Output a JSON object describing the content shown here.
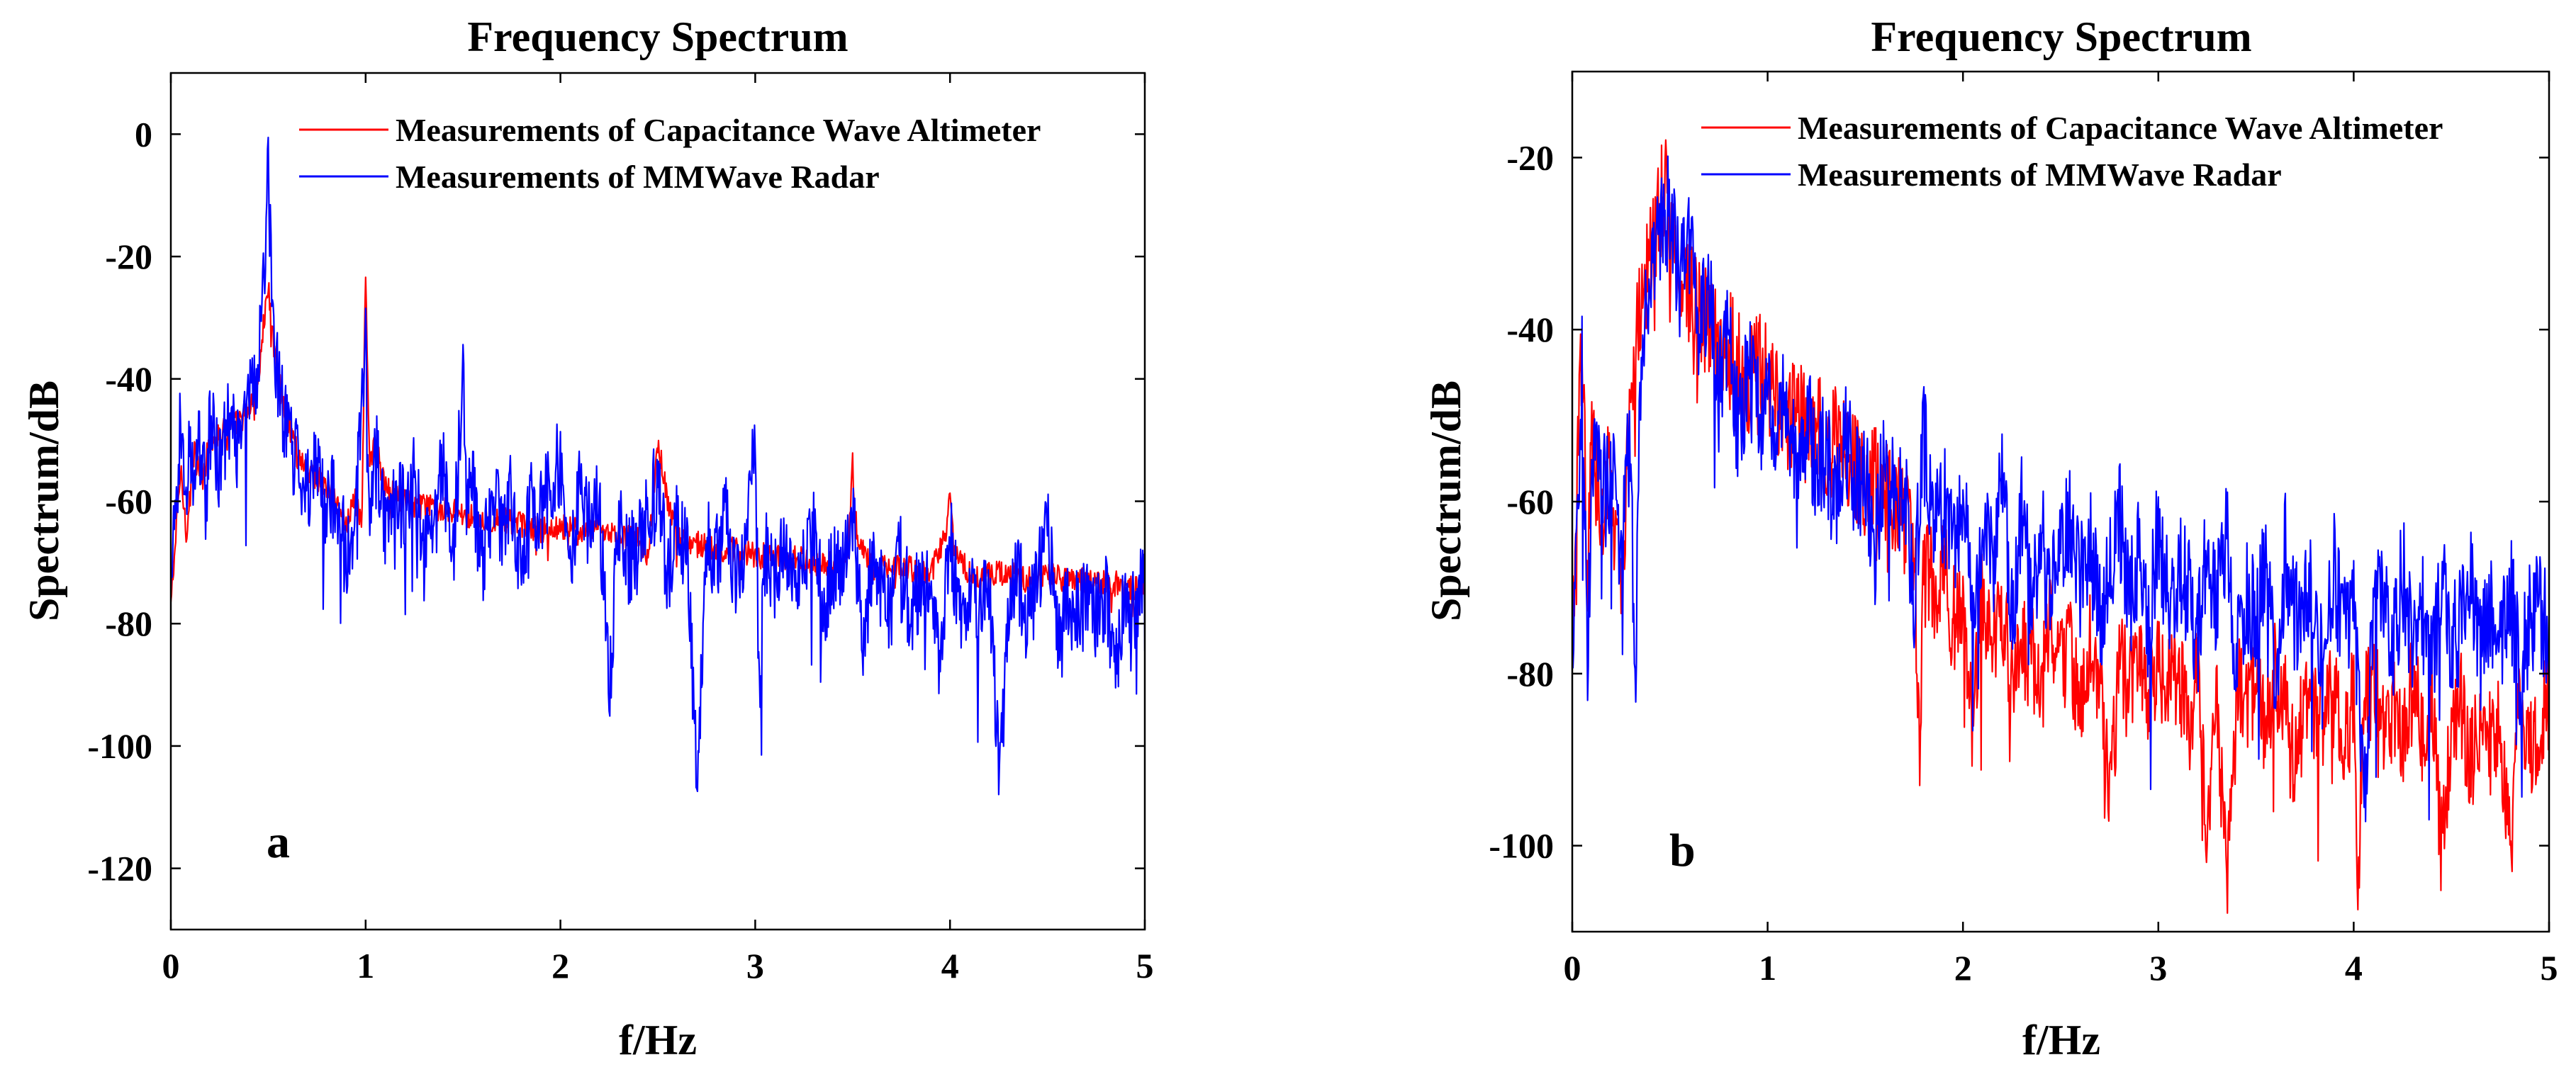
{
  "colors": {
    "capacitance": "#ff0000",
    "mmwave": "#0000ff",
    "axes": "#000000",
    "background": "#ffffff"
  },
  "chart_data": [
    {
      "type": "line",
      "panel_label": "a",
      "title": "Frequency Spectrum",
      "xlabel": "f/Hz",
      "ylabel": "Spectrum/dB",
      "xlim": [
        0,
        5
      ],
      "ylim": [
        -130,
        10
      ],
      "xticks": [
        0,
        1,
        2,
        3,
        4,
        5
      ],
      "xtick_labels": [
        "0",
        "1",
        "2",
        "3",
        "4",
        "5"
      ],
      "yticks": [
        0,
        -20,
        -40,
        -60,
        -80,
        -100,
        -120
      ],
      "ytick_labels": [
        "0",
        "-20",
        "-40",
        "-60",
        "-80",
        "-100",
        "-120"
      ],
      "grid": false,
      "legend_position": "top-right",
      "series": [
        {
          "name": "Measurements of Capacitance Wave Altimeter",
          "color": "#ff0000",
          "x": [
            0,
            0.05,
            0.08,
            0.12,
            0.16,
            0.2,
            0.25,
            0.3,
            0.35,
            0.4,
            0.45,
            0.48,
            0.5,
            0.52,
            0.55,
            0.6,
            0.65,
            0.7,
            0.75,
            0.8,
            0.85,
            0.9,
            0.95,
            0.98,
            1.0,
            1.02,
            1.05,
            1.1,
            1.2,
            1.3,
            1.4,
            1.5,
            1.6,
            1.7,
            1.8,
            1.9,
            2.0,
            2.1,
            2.2,
            2.3,
            2.4,
            2.45,
            2.5,
            2.55,
            2.6,
            2.7,
            2.8,
            2.9,
            3.0,
            3.1,
            3.2,
            3.3,
            3.4,
            3.48,
            3.5,
            3.52,
            3.6,
            3.7,
            3.8,
            3.9,
            3.98,
            4.0,
            4.02,
            4.1,
            4.2,
            4.3,
            4.4,
            4.5,
            4.6,
            4.7,
            4.8,
            4.9,
            5.0
          ],
          "y": [
            -77,
            -55,
            -65,
            -52,
            -57,
            -50,
            -49,
            -48,
            -47,
            -45,
            -40,
            -30,
            -25,
            -32,
            -40,
            -47,
            -52,
            -55,
            -56,
            -58,
            -60,
            -64,
            -58,
            -65,
            -22,
            -55,
            -50,
            -58,
            -60,
            -61,
            -61,
            -62,
            -63,
            -63,
            -64,
            -65,
            -64,
            -65,
            -65,
            -66,
            -66,
            -70,
            -50,
            -60,
            -66,
            -67,
            -68,
            -68,
            -69,
            -69,
            -69,
            -70,
            -70,
            -68,
            -54,
            -65,
            -71,
            -71,
            -71,
            -72,
            -65,
            -57,
            -68,
            -72,
            -72,
            -72,
            -73,
            -72,
            -73,
            -73,
            -73,
            -74,
            -74
          ]
        },
        {
          "name": "Measurements of MMWave Radar",
          "color": "#0000ff",
          "x": [
            0,
            0.05,
            0.08,
            0.1,
            0.12,
            0.15,
            0.18,
            0.2,
            0.25,
            0.3,
            0.35,
            0.4,
            0.45,
            0.48,
            0.5,
            0.52,
            0.55,
            0.6,
            0.65,
            0.7,
            0.75,
            0.8,
            0.85,
            0.9,
            0.95,
            1.0,
            1.02,
            1.05,
            1.1,
            1.15,
            1.2,
            1.25,
            1.3,
            1.35,
            1.4,
            1.45,
            1.5,
            1.52,
            1.55,
            1.6,
            1.65,
            1.7,
            1.75,
            1.8,
            1.85,
            1.9,
            1.95,
            2.0,
            2.05,
            2.1,
            2.15,
            2.2,
            2.25,
            2.3,
            2.35,
            2.4,
            2.45,
            2.5,
            2.55,
            2.6,
            2.65,
            2.7,
            2.75,
            2.8,
            2.85,
            2.9,
            2.95,
            3.0,
            3.02,
            3.05,
            3.1,
            3.15,
            3.2,
            3.25,
            3.3,
            3.35,
            3.4,
            3.45,
            3.5,
            3.55,
            3.6,
            3.65,
            3.7,
            3.75,
            3.8,
            3.85,
            3.9,
            3.95,
            4.0,
            4.05,
            4.1,
            4.15,
            4.2,
            4.25,
            4.3,
            4.35,
            4.4,
            4.45,
            4.5,
            4.55,
            4.6,
            4.65,
            4.7,
            4.75,
            4.8,
            4.85,
            4.9,
            4.95,
            5.0
          ],
          "y": [
            -77,
            -46,
            -62,
            -48,
            -58,
            -50,
            -60,
            -47,
            -55,
            -47,
            -52,
            -44,
            -38,
            -22,
            -4,
            -30,
            -40,
            -50,
            -54,
            -57,
            -55,
            -62,
            -58,
            -70,
            -60,
            -35,
            -62,
            -50,
            -65,
            -58,
            -62,
            -54,
            -70,
            -60,
            -56,
            -68,
            -40,
            -62,
            -58,
            -70,
            -60,
            -64,
            -58,
            -72,
            -60,
            -62,
            -56,
            -54,
            -70,
            -58,
            -64,
            -60,
            -92,
            -62,
            -70,
            -66,
            -60,
            -58,
            -72,
            -64,
            -68,
            -106,
            -66,
            -70,
            -62,
            -72,
            -66,
            -49,
            -90,
            -68,
            -72,
            -66,
            -74,
            -70,
            -64,
            -78,
            -70,
            -72,
            -62,
            -84,
            -70,
            -74,
            -78,
            -68,
            -80,
            -72,
            -76,
            -86,
            -66,
            -78,
            -74,
            -80,
            -72,
            -104,
            -76,
            -72,
            -80,
            -74,
            -63,
            -82,
            -76,
            -78,
            -74,
            -80,
            -76,
            -88,
            -74,
            -78,
            -72
          ]
        }
      ]
    },
    {
      "type": "line",
      "panel_label": "b",
      "title": "Frequency Spectrum",
      "xlabel": "f/Hz",
      "ylabel": "Spectrum/dB",
      "xlim": [
        0,
        5
      ],
      "ylim": [
        -110,
        -10
      ],
      "xticks": [
        0,
        1,
        2,
        3,
        4,
        5
      ],
      "xtick_labels": [
        "0",
        "1",
        "2",
        "3",
        "4",
        "5"
      ],
      "yticks": [
        -20,
        -40,
        -60,
        -80,
        -100
      ],
      "ytick_labels": [
        "-20",
        "-40",
        "-60",
        "-80",
        "-100"
      ],
      "grid": false,
      "legend_position": "top-right",
      "series": [
        {
          "name": "Measurements of Capacitance Wave Altimeter",
          "color": "#ff0000",
          "x": [
            0,
            0.05,
            0.08,
            0.1,
            0.15,
            0.2,
            0.25,
            0.3,
            0.35,
            0.4,
            0.45,
            0.48,
            0.5,
            0.55,
            0.6,
            0.65,
            0.7,
            0.75,
            0.8,
            0.85,
            0.9,
            0.95,
            1.0,
            1.05,
            1.1,
            1.15,
            1.2,
            1.25,
            1.3,
            1.35,
            1.4,
            1.45,
            1.5,
            1.55,
            1.6,
            1.65,
            1.7,
            1.75,
            1.78,
            1.8,
            1.85,
            1.9,
            1.95,
            2.0,
            2.05,
            2.1,
            2.15,
            2.2,
            2.25,
            2.3,
            2.35,
            2.4,
            2.45,
            2.5,
            2.55,
            2.6,
            2.65,
            2.7,
            2.75,
            2.8,
            2.85,
            2.9,
            2.95,
            3.0,
            3.05,
            3.1,
            3.15,
            3.2,
            3.25,
            3.3,
            3.35,
            3.4,
            3.45,
            3.5,
            3.55,
            3.6,
            3.65,
            3.7,
            3.75,
            3.8,
            3.85,
            3.9,
            3.95,
            4.0,
            4.02,
            4.05,
            4.1,
            4.15,
            4.2,
            4.25,
            4.3,
            4.35,
            4.4,
            4.45,
            4.5,
            4.55,
            4.6,
            4.65,
            4.7,
            4.75,
            4.8,
            4.85,
            4.9,
            4.95,
            5.0
          ],
          "y": [
            -77,
            -41,
            -70,
            -52,
            -62,
            -55,
            -72,
            -48,
            -36,
            -32,
            -26,
            -22,
            -28,
            -34,
            -36,
            -38,
            -40,
            -42,
            -41,
            -44,
            -46,
            -44,
            -46,
            -48,
            -50,
            -49,
            -52,
            -50,
            -54,
            -53,
            -55,
            -56,
            -58,
            -57,
            -60,
            -59,
            -62,
            -64,
            -91,
            -66,
            -70,
            -68,
            -74,
            -72,
            -86,
            -70,
            -76,
            -74,
            -80,
            -76,
            -78,
            -82,
            -74,
            -80,
            -78,
            -84,
            -76,
            -80,
            -96,
            -78,
            -82,
            -80,
            -84,
            -78,
            -82,
            -80,
            -86,
            -80,
            -98,
            -84,
            -103,
            -80,
            -84,
            -82,
            -86,
            -80,
            -84,
            -92,
            -82,
            -84,
            -86,
            -82,
            -88,
            -83,
            -105,
            -84,
            -82,
            -86,
            -84,
            -88,
            -82,
            -86,
            -84,
            -100,
            -86,
            -84,
            -90,
            -84,
            -88,
            -86,
            -101,
            -84,
            -88,
            -86,
            -84
          ]
        },
        {
          "name": "Measurements of MMWave Radar",
          "color": "#0000ff",
          "x": [
            0,
            0.05,
            0.08,
            0.1,
            0.15,
            0.2,
            0.25,
            0.3,
            0.32,
            0.35,
            0.4,
            0.45,
            0.5,
            0.55,
            0.6,
            0.65,
            0.7,
            0.75,
            0.8,
            0.85,
            0.9,
            0.95,
            1.0,
            1.05,
            1.1,
            1.15,
            1.2,
            1.25,
            1.3,
            1.35,
            1.4,
            1.45,
            1.5,
            1.55,
            1.6,
            1.65,
            1.7,
            1.75,
            1.8,
            1.85,
            1.9,
            1.95,
            2.0,
            2.05,
            2.1,
            2.15,
            2.2,
            2.25,
            2.3,
            2.35,
            2.4,
            2.45,
            2.5,
            2.55,
            2.6,
            2.65,
            2.7,
            2.75,
            2.8,
            2.85,
            2.9,
            2.95,
            3.0,
            3.05,
            3.1,
            3.15,
            3.2,
            3.25,
            3.3,
            3.35,
            3.4,
            3.45,
            3.5,
            3.55,
            3.6,
            3.65,
            3.7,
            3.75,
            3.8,
            3.85,
            3.9,
            3.95,
            4.0,
            4.05,
            4.1,
            4.15,
            4.2,
            4.25,
            4.3,
            4.35,
            4.4,
            4.45,
            4.5,
            4.55,
            4.6,
            4.65,
            4.7,
            4.75,
            4.8,
            4.85,
            4.9,
            4.95,
            5.0
          ],
          "y": [
            -77,
            -45,
            -80,
            -52,
            -60,
            -56,
            -68,
            -50,
            -86,
            -44,
            -32,
            -28,
            -26,
            -36,
            -30,
            -40,
            -34,
            -48,
            -38,
            -52,
            -44,
            -50,
            -48,
            -52,
            -46,
            -60,
            -50,
            -56,
            -54,
            -62,
            -52,
            -58,
            -56,
            -66,
            -54,
            -60,
            -58,
            -70,
            -53,
            -64,
            -60,
            -66,
            -58,
            -72,
            -62,
            -68,
            -56,
            -74,
            -60,
            -70,
            -64,
            -72,
            -66,
            -62,
            -70,
            -64,
            -74,
            -68,
            -60,
            -72,
            -66,
            -76,
            -62,
            -72,
            -68,
            -70,
            -76,
            -66,
            -72,
            -64,
            -78,
            -70,
            -74,
            -68,
            -80,
            -66,
            -74,
            -72,
            -70,
            -78,
            -68,
            -76,
            -72,
            -96,
            -74,
            -70,
            -78,
            -68,
            -76,
            -72,
            -80,
            -70,
            -76,
            -74,
            -68,
            -78,
            -72,
            -76,
            -70,
            -80,
            -74,
            -72,
            -76
          ]
        }
      ]
    }
  ]
}
